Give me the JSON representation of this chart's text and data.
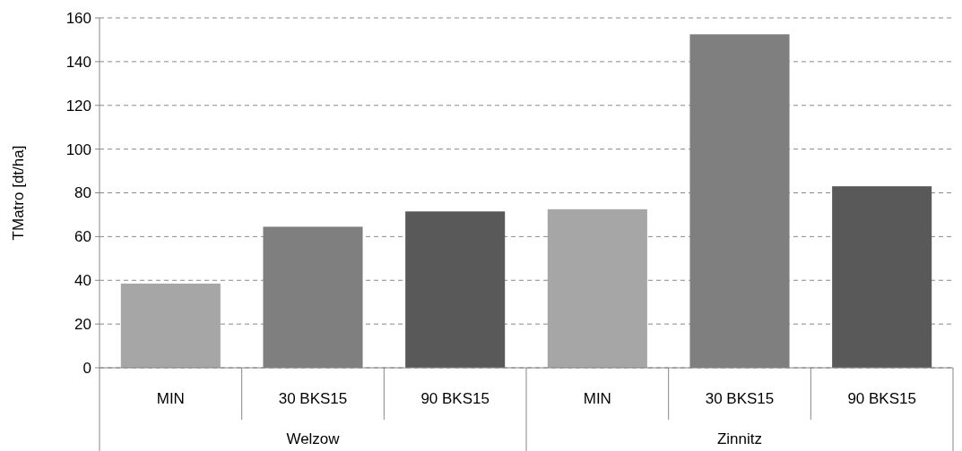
{
  "chart_data": {
    "type": "bar",
    "ylabel": "TMatro [dt/ha]",
    "categories": [
      "MIN",
      "30 BKS15",
      "90 BKS15",
      "MIN",
      "30 BKS15",
      "90 BKS15"
    ],
    "values": [
      38.5,
      64.5,
      71.5,
      72.5,
      152.5,
      83
    ],
    "colors": [
      "#a6a6a6",
      "#7f7f7f",
      "#595959",
      "#a6a6a6",
      "#7f7f7f",
      "#595959"
    ],
    "ylim": [
      0,
      160
    ],
    "yticks": [
      0,
      20,
      40,
      60,
      80,
      100,
      120,
      140,
      160
    ],
    "grid": "y",
    "annotations": [
      "Welzow",
      "Zinnitz"
    ]
  }
}
